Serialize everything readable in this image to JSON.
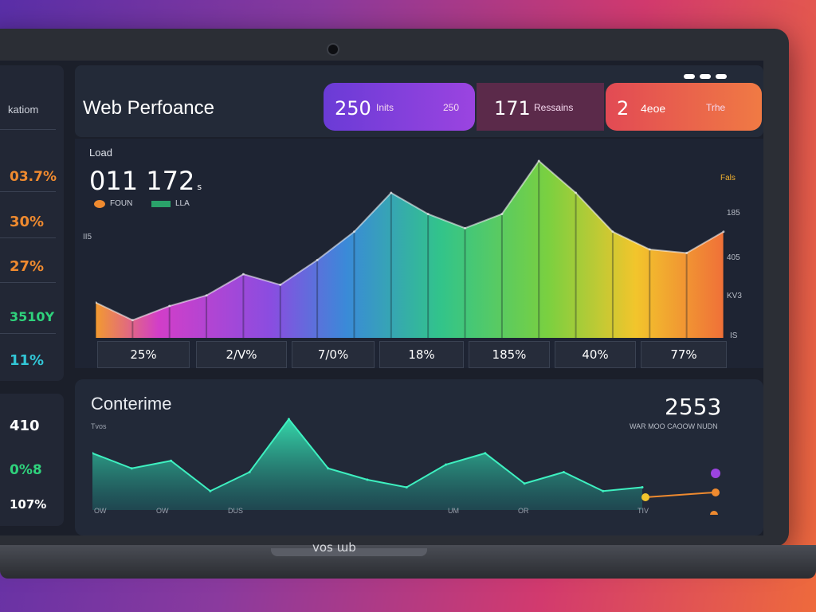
{
  "window": {
    "brand": "vos ɯb"
  },
  "sidebar": {
    "title": "katiom",
    "stats": [
      {
        "value": "03.7%",
        "color": "#ef8a2f"
      },
      {
        "value": "30%",
        "color": "#ef8a2f"
      },
      {
        "value": "27%",
        "color": "#ef8a2f"
      },
      {
        "value": "3510Y",
        "color": "#2fd27c"
      },
      {
        "value": "11%",
        "color": "#32c6d6"
      }
    ],
    "stats2": [
      {
        "value": "410",
        "color": "#ffffff"
      },
      {
        "value": "0%8",
        "color": "#2fd27c"
      },
      {
        "value": "107%",
        "color": "#ffffff"
      }
    ]
  },
  "header": {
    "title": "Web Perfoance",
    "pills": [
      {
        "value": "250",
        "label": "Inits",
        "label2": "250"
      },
      {
        "value": "171",
        "label": "Ressains"
      },
      {
        "value": "2",
        "label": "4eoe",
        "label2": "Trhe"
      }
    ]
  },
  "main": {
    "load_label": "Load",
    "load_value": "011 172",
    "load_unit": "s",
    "legend": [
      {
        "label": "FOUN",
        "color": "#ef8a2f"
      },
      {
        "label": "LLA",
        "color": "#2aa26a"
      }
    ],
    "right_label": "Fals",
    "axis_labels": [
      "185",
      "405",
      "KV3",
      "IS"
    ],
    "left_label": "II5",
    "buckets": [
      "25%",
      "2/V%",
      "7/0%",
      "18%",
      "185%",
      "40%",
      "77%"
    ]
  },
  "chart_data": [
    {
      "type": "area",
      "x": [
        0,
        1,
        2,
        3,
        4,
        5,
        6,
        7,
        8,
        9,
        10,
        11,
        12,
        13,
        14,
        15,
        16,
        17
      ],
      "values": [
        20,
        10,
        18,
        24,
        36,
        30,
        44,
        60,
        82,
        70,
        62,
        70,
        100,
        82,
        60,
        50,
        48,
        60
      ]
    },
    {
      "type": "area",
      "title": "Conterime",
      "subtitle": "Tvos",
      "headline": "2553",
      "note": "WAR MOO CAOOW NUDN",
      "x": [
        0,
        1,
        2,
        3,
        4,
        5,
        6,
        7,
        8,
        9,
        10,
        11,
        12,
        13,
        14
      ],
      "values": [
        30,
        22,
        26,
        10,
        20,
        48,
        22,
        16,
        12,
        24,
        30,
        14,
        20,
        10,
        12
      ],
      "tick_labels": [
        "OW",
        "OW",
        "DUS",
        "UM",
        "OR",
        "TIV"
      ]
    }
  ]
}
